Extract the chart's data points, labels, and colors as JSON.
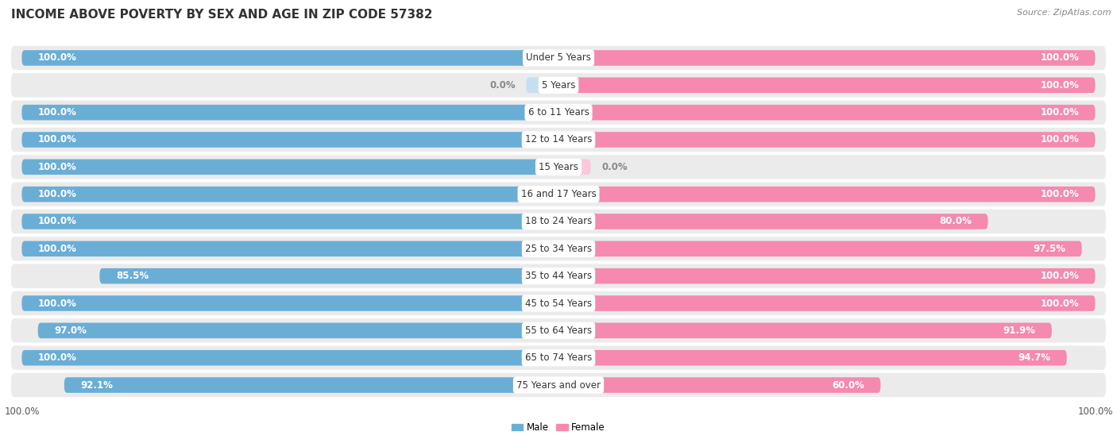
{
  "title": "INCOME ABOVE POVERTY BY SEX AND AGE IN ZIP CODE 57382",
  "source": "Source: ZipAtlas.com",
  "categories": [
    "Under 5 Years",
    "5 Years",
    "6 to 11 Years",
    "12 to 14 Years",
    "15 Years",
    "16 and 17 Years",
    "18 to 24 Years",
    "25 to 34 Years",
    "35 to 44 Years",
    "45 to 54 Years",
    "55 to 64 Years",
    "65 to 74 Years",
    "75 Years and over"
  ],
  "male_values": [
    100.0,
    0.0,
    100.0,
    100.0,
    100.0,
    100.0,
    100.0,
    100.0,
    85.5,
    100.0,
    97.0,
    100.0,
    92.1
  ],
  "female_values": [
    100.0,
    100.0,
    100.0,
    100.0,
    0.0,
    100.0,
    80.0,
    97.5,
    100.0,
    100.0,
    91.9,
    94.7,
    60.0
  ],
  "male_color": "#6aaed6",
  "male_color_light": "#c5dff0",
  "female_color": "#f589b0",
  "female_color_light": "#f9c8db",
  "male_label": "Male",
  "female_label": "Female",
  "bg_color": "#ffffff",
  "row_bg_color": "#ebebeb",
  "title_fontsize": 11,
  "source_fontsize": 8,
  "label_fontsize": 8.5,
  "value_fontsize": 8.5,
  "tick_fontsize": 8.5
}
